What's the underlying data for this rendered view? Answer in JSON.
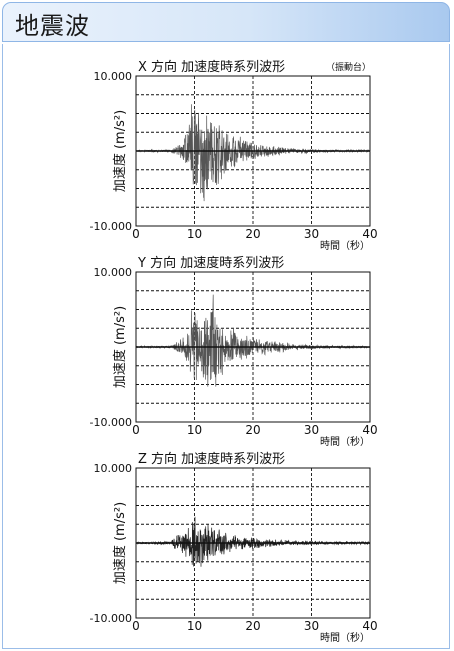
{
  "header": {
    "title": "地震波"
  },
  "chart_data": [
    {
      "type": "line",
      "title": "X 方向 加速度時系列波形",
      "subtitle": "（振動台）",
      "ylabel": "加速度 (m/s²)",
      "xlabel": "時間（秒）",
      "xlim": [
        0,
        40
      ],
      "ylim": [
        -10,
        10
      ],
      "yticks": [
        "10.000",
        "-10.000"
      ],
      "xticks": [
        "0",
        "10",
        "20",
        "30",
        "40"
      ],
      "grid": true,
      "color": "#555555",
      "envelope": {
        "t": [
          0,
          6,
          7,
          8,
          9,
          9.5,
          10,
          10.5,
          11,
          11.5,
          12,
          13,
          14,
          15,
          16,
          18,
          20,
          23,
          27,
          32,
          40
        ],
        "amp": [
          0.1,
          0.2,
          0.8,
          1.5,
          4.0,
          7.0,
          9.0,
          7.5,
          8.0,
          9.5,
          8.0,
          6.0,
          5.0,
          4.0,
          3.0,
          2.0,
          1.3,
          0.8,
          0.4,
          0.2,
          0.15
        ]
      }
    },
    {
      "type": "line",
      "title": "Y 方向 加速度時系列波形",
      "subtitle": "",
      "ylabel": "加速度 (m/s²)",
      "xlabel": "時間（秒）",
      "xlim": [
        0,
        40
      ],
      "ylim": [
        -10,
        10
      ],
      "yticks": [
        "10.000",
        "-10.000"
      ],
      "xticks": [
        "0",
        "10",
        "20",
        "30",
        "40"
      ],
      "grid": true,
      "color": "#555555",
      "envelope": {
        "t": [
          0,
          6,
          7,
          8,
          9,
          9.5,
          10,
          11,
          12,
          13,
          14,
          15,
          16,
          18,
          20,
          23,
          27,
          32,
          40
        ],
        "amp": [
          0.1,
          0.2,
          0.8,
          1.5,
          3.0,
          6.0,
          5.5,
          4.0,
          5.5,
          8.0,
          5.0,
          4.0,
          3.0,
          2.0,
          1.5,
          1.0,
          0.5,
          0.25,
          0.15
        ]
      }
    },
    {
      "type": "line",
      "title": "Z 方向 加速度時系列波形",
      "subtitle": "",
      "ylabel": "加速度 (m/s²)",
      "xlabel": "時間（秒）",
      "xlim": [
        0,
        40
      ],
      "ylim": [
        -10,
        10
      ],
      "yticks": [
        "10.000",
        "-10.000"
      ],
      "xticks": [
        "0",
        "10",
        "20",
        "30",
        "40"
      ],
      "grid": true,
      "color": "#222222",
      "envelope": {
        "t": [
          0,
          6,
          7,
          8,
          9,
          10,
          11,
          12,
          13,
          14,
          15,
          16,
          18,
          20,
          23,
          27,
          32,
          40
        ],
        "amp": [
          0.1,
          0.3,
          1.2,
          2.0,
          2.5,
          4.0,
          3.5,
          3.0,
          2.5,
          2.0,
          1.6,
          1.3,
          1.0,
          0.8,
          0.6,
          0.4,
          0.25,
          0.2
        ]
      }
    }
  ]
}
